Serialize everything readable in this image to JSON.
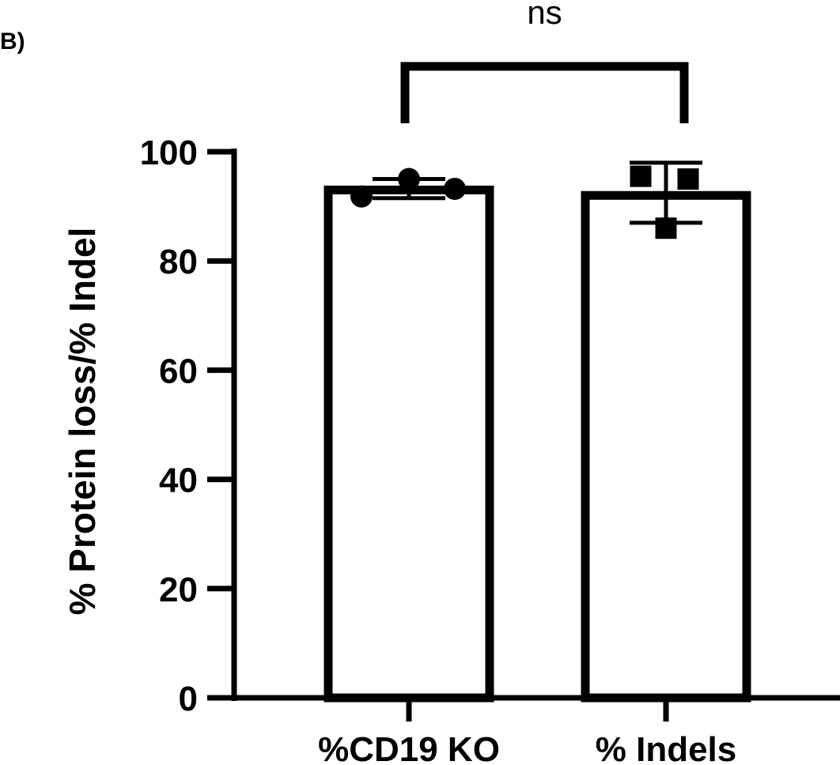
{
  "panel_label": "B)",
  "chart_data": {
    "type": "bar",
    "categories": [
      "%CD19 KO",
      "% Indels"
    ],
    "values": [
      93,
      92
    ],
    "error": [
      {
        "low": 91.5,
        "high": 95
      },
      {
        "low": 87,
        "high": 98
      }
    ],
    "points": [
      [
        91.8,
        95,
        93.2
      ],
      [
        95.5,
        95,
        86
      ]
    ],
    "markers": [
      "circle",
      "square"
    ],
    "ylabel": "% Protein loss/% Indel",
    "xlabel": "",
    "ylim": [
      0,
      100
    ],
    "yticks": [
      0,
      20,
      40,
      60,
      80,
      100
    ],
    "grid": false,
    "comparison": {
      "between": [
        0,
        1
      ],
      "label": "ns"
    },
    "colors": {
      "bar_fill": "#ffffff",
      "stroke": "#000000",
      "marker": "#000000"
    }
  }
}
